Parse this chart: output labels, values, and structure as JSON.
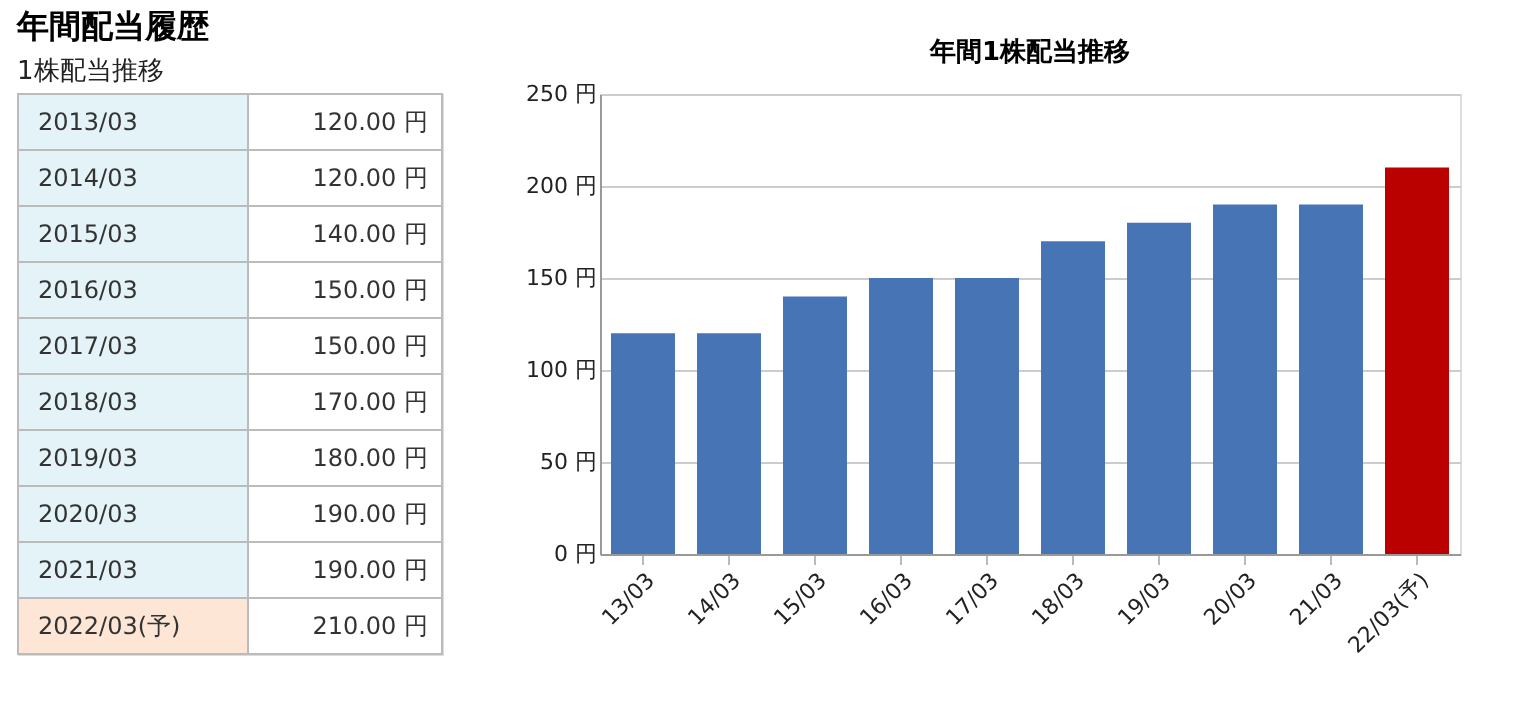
{
  "chart_data": [
    {
      "type": "other",
      "title": "年間配当履歴",
      "subtitle": "1株配当推移",
      "annotations": [
        "2013/03",
        "120.00 円",
        "2014/03",
        "120.00 円",
        "2015/03",
        "140.00 円",
        "2016/03",
        "150.00 円",
        "2017/03",
        "150.00 円",
        "2018/03",
        "170.00 円",
        "2019/03",
        "180.00 円",
        "2020/03",
        "190.00 円",
        "2021/03",
        "190.00 円",
        "2022/03(予)",
        "210.00 円"
      ]
    },
    {
      "type": "bar",
      "title": "年間1株配当推移",
      "categories": [
        "13/03",
        "14/03",
        "15/03",
        "16/03",
        "17/03",
        "18/03",
        "19/03",
        "20/03",
        "21/03",
        "22/03(予)"
      ],
      "values": [
        120,
        120,
        140,
        150,
        150,
        170,
        180,
        190,
        190,
        210
      ],
      "colors": [
        "#4674b5",
        "#4674b5",
        "#4674b5",
        "#4674b5",
        "#4674b5",
        "#4674b5",
        "#4674b5",
        "#4674b5",
        "#4674b5",
        "#bb0000"
      ],
      "ylim": [
        0,
        250
      ],
      "yticks": [
        {
          "value": 0,
          "label": "0 円"
        },
        {
          "value": 50,
          "label": "50 円"
        },
        {
          "value": 100,
          "label": "100 円"
        },
        {
          "value": 150,
          "label": "150 円"
        },
        {
          "value": 200,
          "label": "200 円"
        },
        {
          "value": 250,
          "label": "250 円"
        }
      ],
      "grid": "y"
    }
  ]
}
